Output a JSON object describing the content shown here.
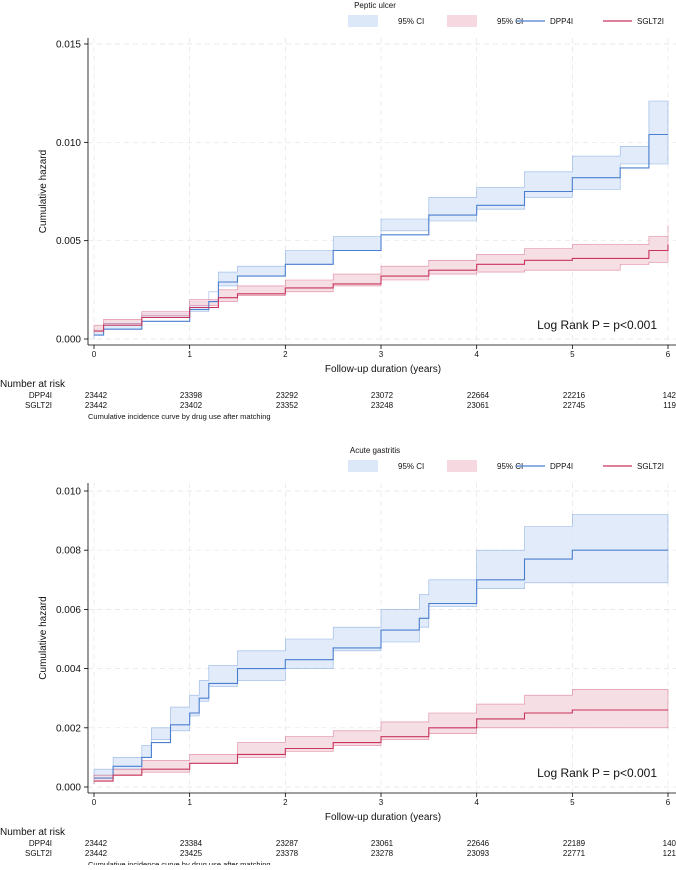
{
  "chart_data": [
    {
      "type": "line",
      "title": "Peptic ulcer",
      "xlabel": "Follow-up duration (years)",
      "ylabel": "Cumulative hazard",
      "xlim": [
        0,
        6
      ],
      "ylim": [
        0,
        0.015
      ],
      "yticks": [
        "0.000",
        "0.005",
        "0.010",
        "0.015"
      ],
      "xticks": [
        "0",
        "1",
        "2",
        "3",
        "4",
        "5",
        "6"
      ],
      "legend": [
        "95% CI",
        "95% CI",
        "DPP4I",
        "SGLT2I"
      ],
      "annotation": "Log Rank P = p<0.001",
      "colors": {
        "dpp4i": "#4a7fd0",
        "sglt2i": "#c8345c",
        "dpp4i_ci": "#dce8f8",
        "sglt2i_ci": "#f5d8e0"
      },
      "series": [
        {
          "name": "DPP4I",
          "x": [
            0,
            0.1,
            0.5,
            1.0,
            1.2,
            1.3,
            1.5,
            2.0,
            2.5,
            3.0,
            3.5,
            4.0,
            4.5,
            5.0,
            5.5,
            5.8,
            6.0
          ],
          "y": [
            0.0002,
            0.0005,
            0.0009,
            0.0015,
            0.0019,
            0.0029,
            0.0032,
            0.0038,
            0.0045,
            0.0053,
            0.0063,
            0.0068,
            0.0075,
            0.0082,
            0.0087,
            0.0104,
            0.0104
          ],
          "lower": [
            0.0,
            0.0002,
            0.0005,
            0.0011,
            0.0014,
            0.0024,
            0.0027,
            0.0032,
            0.0038,
            0.0045,
            0.0055,
            0.006,
            0.0066,
            0.0072,
            0.0076,
            0.0089,
            0.0089
          ],
          "upper": [
            0.0005,
            0.0008,
            0.0013,
            0.0019,
            0.0024,
            0.0034,
            0.0037,
            0.0045,
            0.0052,
            0.0061,
            0.0072,
            0.0077,
            0.0085,
            0.0093,
            0.0098,
            0.0121,
            0.0121
          ]
        },
        {
          "name": "SGLT2I",
          "x": [
            0,
            0.1,
            0.5,
            1.0,
            1.3,
            1.5,
            2.0,
            2.5,
            3.0,
            3.5,
            4.0,
            4.5,
            5.0,
            5.5,
            5.8,
            6.0
          ],
          "y": [
            0.0004,
            0.0007,
            0.0011,
            0.0016,
            0.0021,
            0.0023,
            0.0026,
            0.0028,
            0.0032,
            0.0035,
            0.0038,
            0.004,
            0.0041,
            0.0041,
            0.0045,
            0.0048
          ],
          "lower": [
            0.0002,
            0.0004,
            0.0008,
            0.0012,
            0.0017,
            0.0019,
            0.0022,
            0.0024,
            0.0027,
            0.003,
            0.0033,
            0.0034,
            0.0035,
            0.0035,
            0.0038,
            0.0039
          ],
          "upper": [
            0.0007,
            0.001,
            0.0014,
            0.002,
            0.0025,
            0.0027,
            0.003,
            0.0033,
            0.0037,
            0.004,
            0.0043,
            0.0046,
            0.0048,
            0.0048,
            0.0052,
            0.0058
          ]
        }
      ],
      "risk_table": {
        "header": "Number at risk",
        "rows": [
          {
            "label": "DPP4I",
            "values": [
              "23442",
              "23398",
              "23292",
              "23072",
              "22664",
              "22216",
              "142"
            ]
          },
          {
            "label": "SGLT2I",
            "values": [
              "23442",
              "23402",
              "23352",
              "23248",
              "23061",
              "22745",
              "119"
            ]
          }
        ]
      },
      "caption": "Cumulative incidence curve by drug use after matching"
    },
    {
      "type": "line",
      "title": "Acute gastritis",
      "xlabel": "Follow-up duration (years)",
      "ylabel": "Cumulative hazard",
      "xlim": [
        0,
        6
      ],
      "ylim": [
        0,
        0.01
      ],
      "yticks": [
        "0.000",
        "0.002",
        "0.004",
        "0.006",
        "0.008",
        "0.010"
      ],
      "xticks": [
        "0",
        "1",
        "2",
        "3",
        "4",
        "5",
        "6"
      ],
      "legend": [
        "95% CI",
        "95% CI",
        "DPP4I",
        "SGLT2I"
      ],
      "annotation": "Log Rank P = p<0.001",
      "colors": {
        "dpp4i": "#4a7fd0",
        "sglt2i": "#c8345c",
        "dpp4i_ci": "#dce8f8",
        "sglt2i_ci": "#f5d8e0"
      },
      "series": [
        {
          "name": "DPP4I",
          "x": [
            0,
            0.2,
            0.5,
            0.6,
            0.8,
            1.0,
            1.1,
            1.2,
            1.5,
            2.0,
            2.5,
            3.0,
            3.4,
            3.5,
            4.0,
            4.5,
            5.0,
            6.0
          ],
          "y": [
            0.0003,
            0.0007,
            0.001,
            0.0015,
            0.0021,
            0.0025,
            0.003,
            0.0035,
            0.004,
            0.0043,
            0.0047,
            0.0053,
            0.0057,
            0.0062,
            0.007,
            0.0077,
            0.008,
            0.008
          ],
          "lower": [
            0.0001,
            0.0004,
            0.0006,
            0.001,
            0.0016,
            0.0019,
            0.0024,
            0.0029,
            0.0034,
            0.0036,
            0.004,
            0.0046,
            0.0049,
            0.0054,
            0.0061,
            0.0067,
            0.0069,
            0.0069
          ],
          "upper": [
            0.0006,
            0.001,
            0.0014,
            0.002,
            0.0027,
            0.0031,
            0.0036,
            0.0041,
            0.0046,
            0.005,
            0.0054,
            0.006,
            0.0065,
            0.007,
            0.008,
            0.0088,
            0.0092,
            0.0092
          ]
        },
        {
          "name": "SGLT2I",
          "x": [
            0,
            0.2,
            0.5,
            1.0,
            1.5,
            2.0,
            2.5,
            3.0,
            3.5,
            4.0,
            4.5,
            5.0,
            6.0
          ],
          "y": [
            0.0002,
            0.0004,
            0.0006,
            0.0008,
            0.0011,
            0.0013,
            0.0015,
            0.0017,
            0.002,
            0.0023,
            0.0025,
            0.0026,
            0.0026
          ],
          "lower": [
            0.0001,
            0.0002,
            0.0004,
            0.0005,
            0.0008,
            0.001,
            0.0012,
            0.0014,
            0.0016,
            0.0018,
            0.002,
            0.002,
            0.002
          ],
          "upper": [
            0.0004,
            0.0006,
            0.0009,
            0.0011,
            0.0015,
            0.0017,
            0.0019,
            0.0022,
            0.0025,
            0.0028,
            0.0031,
            0.0033,
            0.0033
          ]
        }
      ],
      "risk_table": {
        "header": "Number at risk",
        "rows": [
          {
            "label": "DPP4I",
            "values": [
              "23442",
              "23384",
              "23287",
              "23061",
              "22646",
              "22189",
              "140"
            ]
          },
          {
            "label": "SGLT2I",
            "values": [
              "23442",
              "23425",
              "23378",
              "23278",
              "23093",
              "22771",
              "121"
            ]
          }
        ]
      },
      "caption": "Cumulative incidence curve by drug use after matching"
    }
  ]
}
